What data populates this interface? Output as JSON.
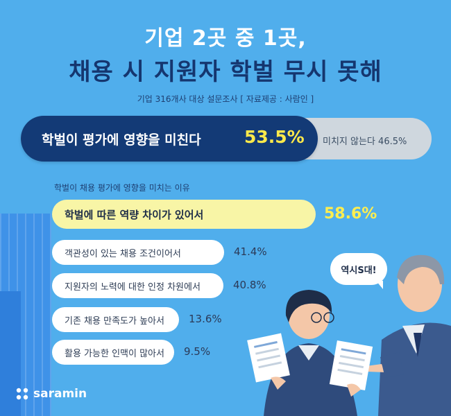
{
  "header": {
    "title_line1": "기업 2곳 중 1곳,",
    "title_line2": "채용 시 지원자 학벌 무시 못해",
    "subtitle": "기업 316개사 대상 설문조사 [ 자료제공 : 사람인 ]"
  },
  "bubble": {
    "text": "역시S대!"
  },
  "logo": {
    "text": "saramin"
  },
  "colors": {
    "background": "#50aeec",
    "navy": "#133a76",
    "highlight": "#ffee4f",
    "top_bar": "#f8f5a6"
  },
  "chart_data": [
    {
      "type": "bar",
      "categories": [
        "학벌이 평가에 영향을 미친다",
        "미치지 않는다"
      ],
      "values": [
        53.5,
        46.5
      ],
      "value_labels": [
        "53.5%",
        "46.5%"
      ],
      "ylim": [
        0,
        100
      ]
    },
    {
      "type": "bar",
      "title": "학벌이 채용 평가에 영향을 미치는 이유",
      "categories": [
        "학벌에 따른 역량 차이가 있어서",
        "객관성이 있는 채용 조건이어서",
        "지원자의 노력에 대한 인정 차원에서",
        "기존 채용 만족도가 높아서",
        "활용 가능한 인맥이 많아서"
      ],
      "values": [
        58.6,
        41.4,
        40.8,
        13.6,
        9.5
      ],
      "value_labels": [
        "58.6%",
        "41.4%",
        "40.8%",
        "13.6%",
        "9.5%"
      ]
    }
  ]
}
